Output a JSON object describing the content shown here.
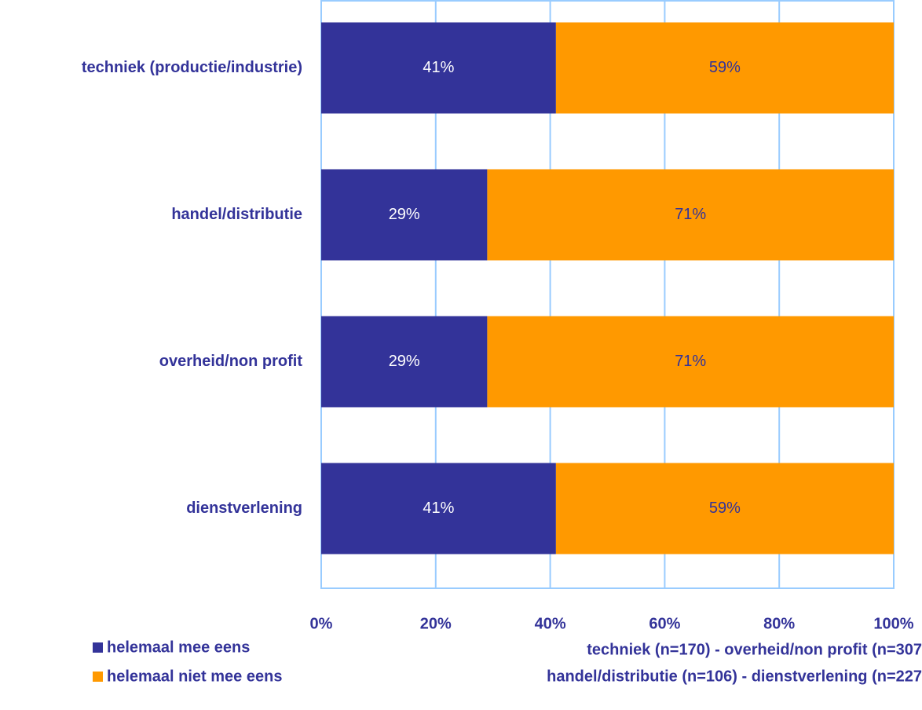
{
  "chart_data": {
    "type": "stacked_barh",
    "categories": [
      "techniek (productie/industrie)",
      "handel/distributie",
      "overheid/non profit",
      "dienstverlening"
    ],
    "series": [
      {
        "name": "helemaal mee eens",
        "color": "#333399",
        "label_color": "#ffffff",
        "values": [
          41,
          29,
          29,
          41
        ],
        "value_labels": [
          "41%",
          "29%",
          "29%",
          "41%"
        ]
      },
      {
        "name": "helemaal niet mee eens",
        "color": "#ff9900",
        "label_color": "#333399",
        "values": [
          59,
          71,
          71,
          59
        ],
        "value_labels": [
          "59%",
          "71%",
          "71%",
          "59%"
        ]
      }
    ],
    "xlim": [
      0,
      100
    ],
    "xticks": [
      {
        "value": 0,
        "label": "0%"
      },
      {
        "value": 20,
        "label": "20%"
      },
      {
        "value": 40,
        "label": "40%"
      },
      {
        "value": 60,
        "label": "60%"
      },
      {
        "value": 80,
        "label": "80%"
      },
      {
        "value": 100,
        "label": "100%"
      }
    ],
    "grid": true,
    "grid_color": "#99ccff",
    "text_color": "#333399",
    "footnote": [
      "techniek (n=170) - overheid/non profit (n=307",
      "handel/distributie (n=106) - dienstverlening (n=227"
    ]
  }
}
